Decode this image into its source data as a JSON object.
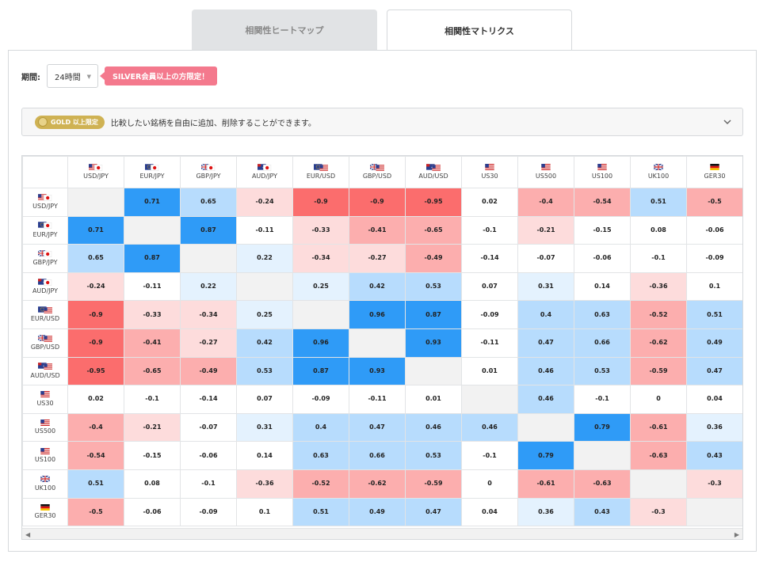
{
  "tabs": [
    {
      "label": "相関性ヒートマップ",
      "active": false
    },
    {
      "label": "相関性マトリクス",
      "active": true
    }
  ],
  "period": {
    "label": "期間:",
    "value": "24時間"
  },
  "silver_notice": "SILVER会員以上の方限定！",
  "gold": {
    "badge": "GOLD 以上限定",
    "text": "比較したい銘柄を自由に追加、削除することができます。"
  },
  "colors": {
    "blue_strong": "#2f9bf7",
    "blue_mid": "#b7dcfd",
    "blue_light": "#e4f2fe",
    "red_strong": "#fb6d6d",
    "red_mid": "#fcaeae",
    "red_light": "#fddcdc",
    "diag": "#f2f2f2",
    "silver": "#f4798d",
    "gold": "#cfb253"
  },
  "symbols": [
    {
      "name": "USD/JPY",
      "flag": "us-jp"
    },
    {
      "name": "EUR/JPY",
      "flag": "eu-jp"
    },
    {
      "name": "GBP/JPY",
      "flag": "gb-jp"
    },
    {
      "name": "AUD/JPY",
      "flag": "au-jp"
    },
    {
      "name": "EUR/USD",
      "flag": "eu-us"
    },
    {
      "name": "GBP/USD",
      "flag": "gb-us"
    },
    {
      "name": "AUD/USD",
      "flag": "au-us"
    },
    {
      "name": "US30",
      "flag": "us"
    },
    {
      "name": "US500",
      "flag": "us"
    },
    {
      "name": "US100",
      "flag": "us"
    },
    {
      "name": "UK100",
      "flag": "gb"
    },
    {
      "name": "GER30",
      "flag": "de"
    }
  ],
  "matrix": [
    [
      "",
      "0.71",
      "0.65",
      "-0.24",
      "-0.9",
      "-0.9",
      "-0.95",
      "0.02",
      "-0.4",
      "-0.54",
      "0.51",
      "-0.5"
    ],
    [
      "0.71",
      "",
      "0.87",
      "-0.11",
      "-0.33",
      "-0.41",
      "-0.65",
      "-0.1",
      "-0.21",
      "-0.15",
      "0.08",
      "-0.06"
    ],
    [
      "0.65",
      "0.87",
      "",
      "0.22",
      "-0.34",
      "-0.27",
      "-0.49",
      "-0.14",
      "-0.07",
      "-0.06",
      "-0.1",
      "-0.09"
    ],
    [
      "-0.24",
      "-0.11",
      "0.22",
      "",
      "0.25",
      "0.42",
      "0.53",
      "0.07",
      "0.31",
      "0.14",
      "-0.36",
      "0.1"
    ],
    [
      "-0.9",
      "-0.33",
      "-0.34",
      "0.25",
      "",
      "0.96",
      "0.87",
      "-0.09",
      "0.4",
      "0.63",
      "-0.52",
      "0.51"
    ],
    [
      "-0.9",
      "-0.41",
      "-0.27",
      "0.42",
      "0.96",
      "",
      "0.93",
      "-0.11",
      "0.47",
      "0.66",
      "-0.62",
      "0.49"
    ],
    [
      "-0.95",
      "-0.65",
      "-0.49",
      "0.53",
      "0.87",
      "0.93",
      "",
      "0.01",
      "0.46",
      "0.53",
      "-0.59",
      "0.47"
    ],
    [
      "0.02",
      "-0.1",
      "-0.14",
      "0.07",
      "-0.09",
      "-0.11",
      "0.01",
      "",
      "0.46",
      "-0.1",
      "0",
      "0.04"
    ],
    [
      "-0.4",
      "-0.21",
      "-0.07",
      "0.31",
      "0.4",
      "0.47",
      "0.46",
      "0.46",
      "",
      "0.79",
      "-0.61",
      "0.36"
    ],
    [
      "-0.54",
      "-0.15",
      "-0.06",
      "0.14",
      "0.63",
      "0.66",
      "0.53",
      "-0.1",
      "0.79",
      "",
      "-0.63",
      "0.43"
    ],
    [
      "0.51",
      "0.08",
      "-0.1",
      "-0.36",
      "-0.52",
      "-0.62",
      "-0.59",
      "0",
      "-0.61",
      "-0.63",
      "",
      "-0.3"
    ],
    [
      "-0.5",
      "-0.06",
      "-0.09",
      "0.1",
      "0.51",
      "0.49",
      "0.47",
      "0.04",
      "0.36",
      "0.43",
      "-0.3",
      ""
    ]
  ]
}
